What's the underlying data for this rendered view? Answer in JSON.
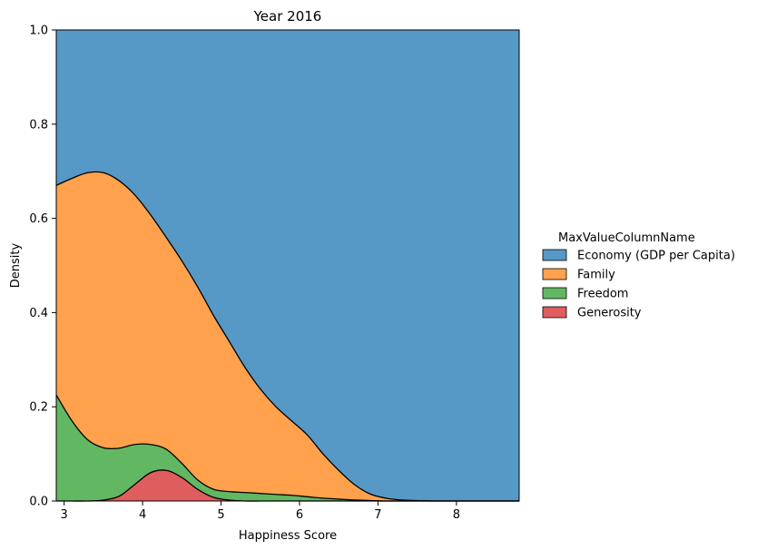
{
  "chart_data": {
    "type": "area",
    "stacking": "fill",
    "title": "Year 2016",
    "xlabel": "Happiness Score",
    "ylabel": "Density",
    "xlim": [
      2.9,
      8.8
    ],
    "ylim": [
      0,
      1
    ],
    "x_ticks": [
      3,
      4,
      5,
      6,
      7,
      8
    ],
    "y_ticks": [
      0.0,
      0.2,
      0.4,
      0.6,
      0.8,
      1.0
    ],
    "y_tick_labels": [
      "0.0",
      "0.2",
      "0.4",
      "0.6",
      "0.8",
      "1.0"
    ],
    "grid": false,
    "legend": {
      "title": "MaxValueColumnName",
      "placement": "right",
      "entries": [
        "Economy (GDP per Capita)",
        "Family",
        "Freedom",
        "Generosity"
      ]
    },
    "colors": {
      "Economy (GDP per Capita)": "#5698c6",
      "Family": "#ffa14d",
      "Freedom": "#62b862",
      "Generosity": "#e05d5d"
    },
    "boundaries": {
      "x": [
        2.9,
        3.1,
        3.3,
        3.5,
        3.7,
        3.9,
        4.1,
        4.3,
        4.5,
        4.7,
        4.9,
        5.1,
        5.3,
        5.5,
        5.7,
        5.9,
        6.1,
        6.3,
        6.5,
        6.7,
        6.9,
        7.1,
        7.3,
        7.5,
        7.7,
        7.9,
        8.1,
        8.3,
        8.5,
        8.8
      ],
      "family_top": [
        0.67,
        0.685,
        0.697,
        0.697,
        0.68,
        0.65,
        0.608,
        0.56,
        0.51,
        0.455,
        0.395,
        0.34,
        0.285,
        0.238,
        0.2,
        0.17,
        0.14,
        0.1,
        0.065,
        0.035,
        0.015,
        0.006,
        0.002,
        0.001,
        0.0,
        0.0,
        0.0,
        0.0,
        0.0,
        0.0
      ],
      "freedom_top": [
        0.225,
        0.17,
        0.13,
        0.113,
        0.112,
        0.12,
        0.12,
        0.11,
        0.08,
        0.045,
        0.025,
        0.02,
        0.018,
        0.016,
        0.014,
        0.012,
        0.009,
        0.006,
        0.004,
        0.002,
        0.001,
        0.0,
        0.0,
        0.0,
        0.0,
        0.0,
        0.0,
        0.0,
        0.0,
        0.0
      ],
      "generosity_top": [
        0.0,
        0.0,
        0.0,
        0.002,
        0.01,
        0.035,
        0.06,
        0.065,
        0.05,
        0.025,
        0.008,
        0.002,
        0.0,
        0.0,
        0.0,
        0.0,
        0.0,
        0.0,
        0.0,
        0.0,
        0.0,
        0.0,
        0.0,
        0.0,
        0.0,
        0.0,
        0.0,
        0.0,
        0.0,
        0.0
      ]
    }
  }
}
